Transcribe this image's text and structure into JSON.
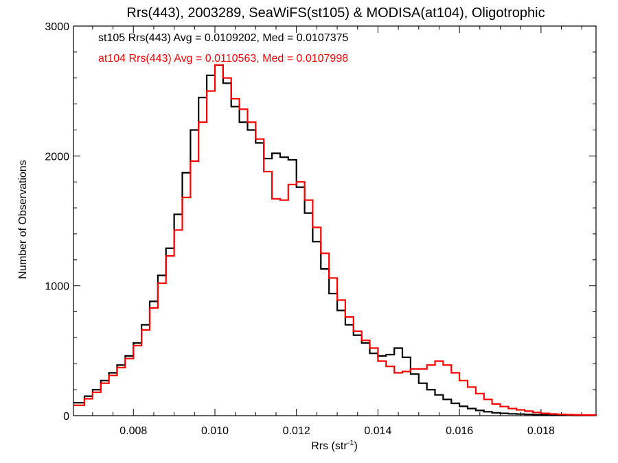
{
  "chart_data": {
    "type": "line",
    "title": "Rrs(443), 2003289, SeaWiFS(st105) & MODISA(at104), Oligotrophic",
    "xlabel_main": "Rrs (str",
    "xlabel_sup": "-1",
    "xlabel_close": ")",
    "ylabel": "Number of Observations",
    "xlim": [
      0.00653,
      0.01935
    ],
    "ylim": [
      0,
      3000
    ],
    "xticks": [
      0.008,
      0.01,
      0.012,
      0.014,
      0.016,
      0.018
    ],
    "xtick_labels": [
      "0.008",
      "0.010",
      "0.012",
      "0.014",
      "0.016",
      "0.018"
    ],
    "yticks": [
      0,
      1000,
      2000,
      3000
    ],
    "ytick_labels": [
      "0",
      "1000",
      "2000",
      "3000"
    ],
    "grid": false,
    "legend_position": "top-left",
    "series": [
      {
        "name": "st105 Rrs(443) Avg = 0.0109202, Med = 0.0107375",
        "color": "#000000",
        "x": [
          0.00653,
          0.0068,
          0.007,
          0.0072,
          0.0074,
          0.0076,
          0.0078,
          0.008,
          0.0082,
          0.0084,
          0.0086,
          0.0088,
          0.009,
          0.0092,
          0.0094,
          0.0096,
          0.0098,
          0.01,
          0.0102,
          0.0104,
          0.0106,
          0.0108,
          0.011,
          0.0112,
          0.0114,
          0.0116,
          0.0118,
          0.012,
          0.0122,
          0.0124,
          0.0126,
          0.0128,
          0.013,
          0.0132,
          0.0134,
          0.0136,
          0.0138,
          0.014,
          0.0142,
          0.0144,
          0.0146,
          0.0148,
          0.015,
          0.0152,
          0.0154,
          0.0156,
          0.0158,
          0.016,
          0.0162,
          0.0164,
          0.0166,
          0.0168,
          0.017,
          0.0172,
          0.0174,
          0.0176,
          0.0178,
          0.018,
          0.0182,
          0.0184,
          0.0186,
          0.0188,
          0.019,
          0.01935
        ],
        "y": [
          100,
          150,
          200,
          270,
          330,
          390,
          460,
          560,
          700,
          880,
          1080,
          1290,
          1550,
          1870,
          2200,
          2450,
          2620,
          2700,
          2560,
          2380,
          2260,
          2200,
          2100,
          1980,
          2020,
          1990,
          1970,
          1760,
          1560,
          1340,
          1130,
          940,
          810,
          700,
          620,
          560,
          480,
          460,
          470,
          520,
          450,
          320,
          250,
          200,
          160,
          125,
          95,
          72,
          55,
          40,
          30,
          22,
          18,
          14,
          12,
          10,
          8,
          6,
          5,
          4,
          3,
          2,
          2,
          1
        ]
      },
      {
        "name": "at104 Rrs(443) Avg = 0.0110563, Med = 0.0107998",
        "color": "#ff0000",
        "x": [
          0.00653,
          0.0068,
          0.007,
          0.0072,
          0.0074,
          0.0076,
          0.0078,
          0.008,
          0.0082,
          0.0084,
          0.0086,
          0.0088,
          0.009,
          0.0092,
          0.0094,
          0.0096,
          0.0098,
          0.01,
          0.0102,
          0.0104,
          0.0106,
          0.0108,
          0.011,
          0.0112,
          0.0114,
          0.0116,
          0.0118,
          0.012,
          0.0122,
          0.0124,
          0.0126,
          0.0128,
          0.013,
          0.0132,
          0.0134,
          0.0136,
          0.0138,
          0.014,
          0.0142,
          0.0144,
          0.0146,
          0.0148,
          0.015,
          0.0152,
          0.0154,
          0.0156,
          0.0158,
          0.016,
          0.0162,
          0.0164,
          0.0166,
          0.0168,
          0.017,
          0.0172,
          0.0174,
          0.0176,
          0.0178,
          0.018,
          0.0182,
          0.0184,
          0.0186,
          0.0188,
          0.019,
          0.01935
        ],
        "y": [
          80,
          130,
          180,
          250,
          310,
          370,
          440,
          540,
          660,
          830,
          1020,
          1230,
          1430,
          1680,
          1960,
          2260,
          2500,
          2700,
          2600,
          2440,
          2360,
          2260,
          2130,
          1880,
          1670,
          1660,
          1780,
          1800,
          1660,
          1450,
          1250,
          1060,
          890,
          760,
          650,
          580,
          520,
          420,
          380,
          330,
          340,
          360,
          360,
          390,
          420,
          390,
          330,
          270,
          220,
          170,
          125,
          90,
          70,
          55,
          45,
          35,
          25,
          18,
          13,
          10,
          8,
          6,
          5,
          4
        ]
      }
    ]
  }
}
